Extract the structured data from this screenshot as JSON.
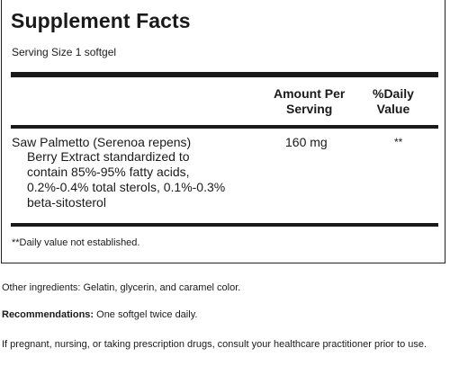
{
  "facts": {
    "title": "Supplement Facts",
    "serving_size": "Serving Size 1 softgel",
    "columns": {
      "amount_line1": "Amount Per",
      "amount_line2": "Serving",
      "dv_line1": "%Daily",
      "dv_line2": "Value"
    },
    "ingredients": [
      {
        "name": "Saw Palmetto (Serenoa repens)",
        "description_lines": [
          "Berry Extract standardized to",
          "contain 85%-95% fatty acids,",
          "0.2%-0.4% total sterols, 0.1%-0.3%",
          "beta-sitosterol"
        ],
        "amount": "160 mg",
        "daily_value": "**"
      }
    ],
    "footnote": "**Daily value not established."
  },
  "other_ingredients": "Other ingredients: Gelatin, glycerin, and caramel color.",
  "recommendations": {
    "label": "Recommendations:",
    "text": " One softgel twice daily."
  },
  "warning": "If pregnant, nursing, or taking prescription drugs, consult your healthcare practitioner prior to use."
}
